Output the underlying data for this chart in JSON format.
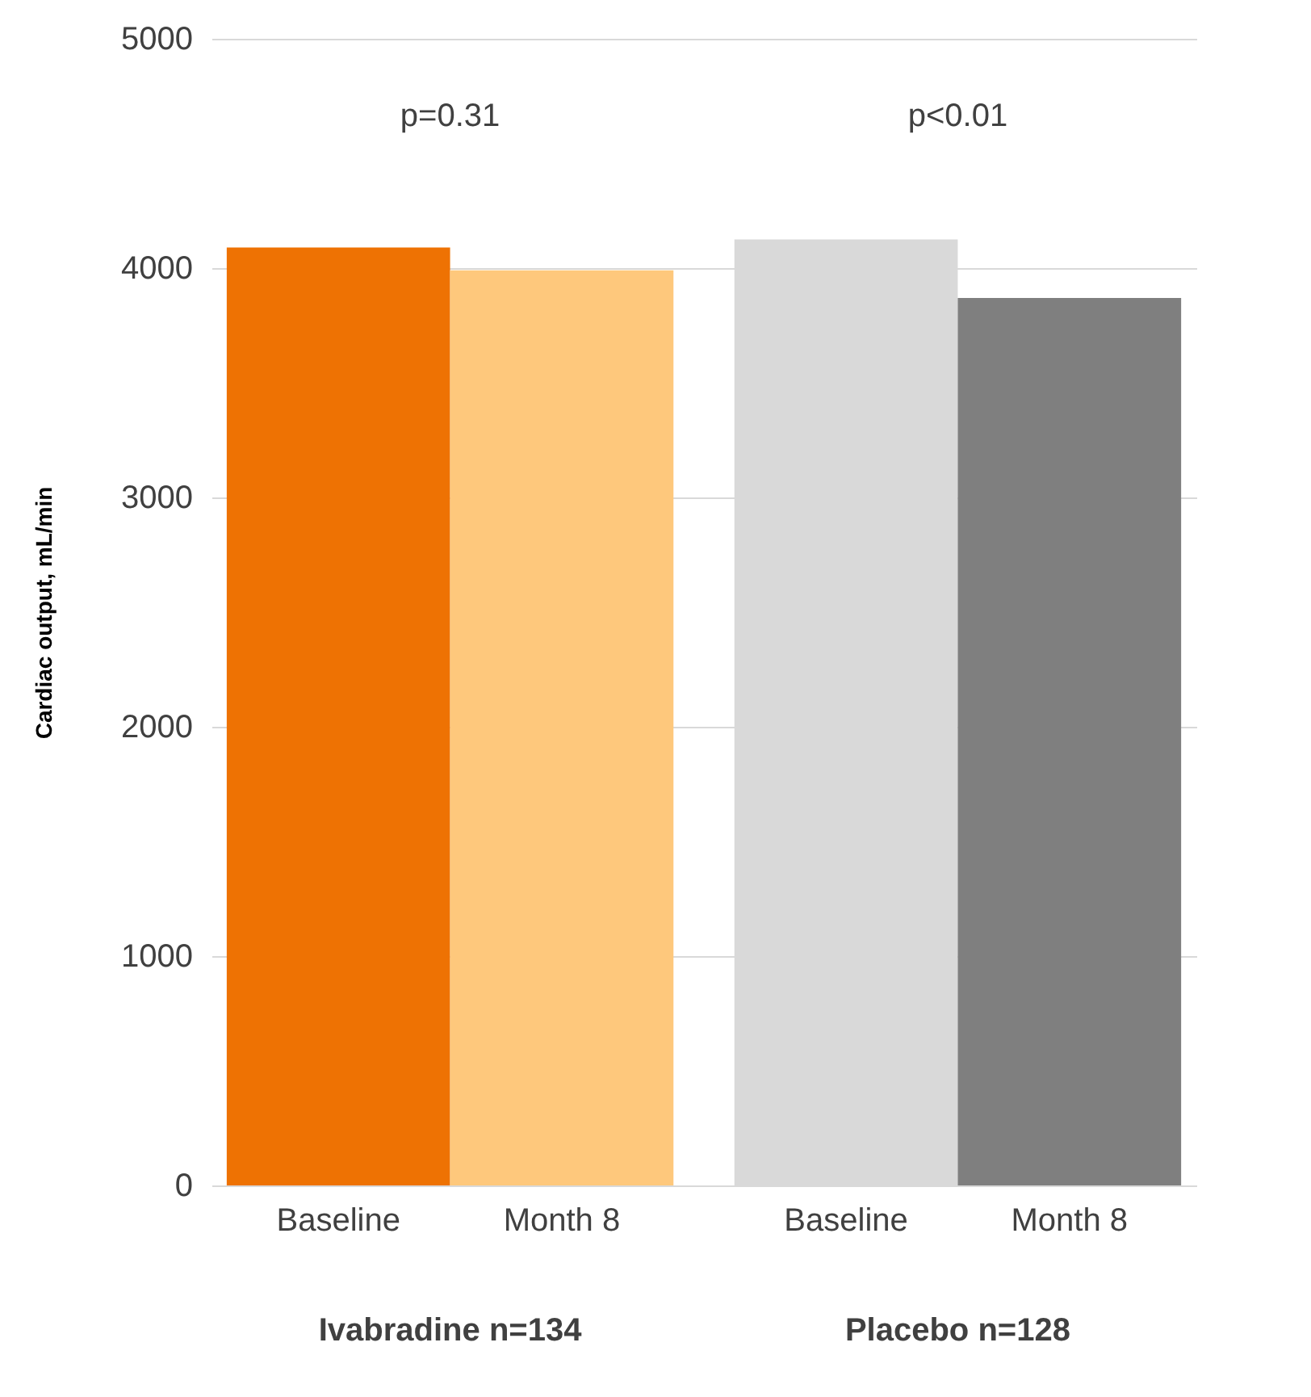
{
  "chart_data": {
    "type": "bar",
    "ylabel": "Cardiac output, mL/min",
    "categories": [
      "Baseline",
      "Month 8",
      "Baseline",
      "Month 8"
    ],
    "values": [
      4090,
      3990,
      4125,
      3870
    ],
    "colors": [
      "#ee7203",
      "#fec87c",
      "#d9d9d9",
      "#7f7f7f"
    ],
    "ylim": [
      0,
      5000
    ],
    "yticks": [
      0,
      1000,
      2000,
      3000,
      4000,
      5000
    ],
    "grid": "y",
    "annotations": [
      "p=0.31",
      "p<0.01",
      "Ivabradine n=134",
      "Placebo n=128"
    ]
  }
}
